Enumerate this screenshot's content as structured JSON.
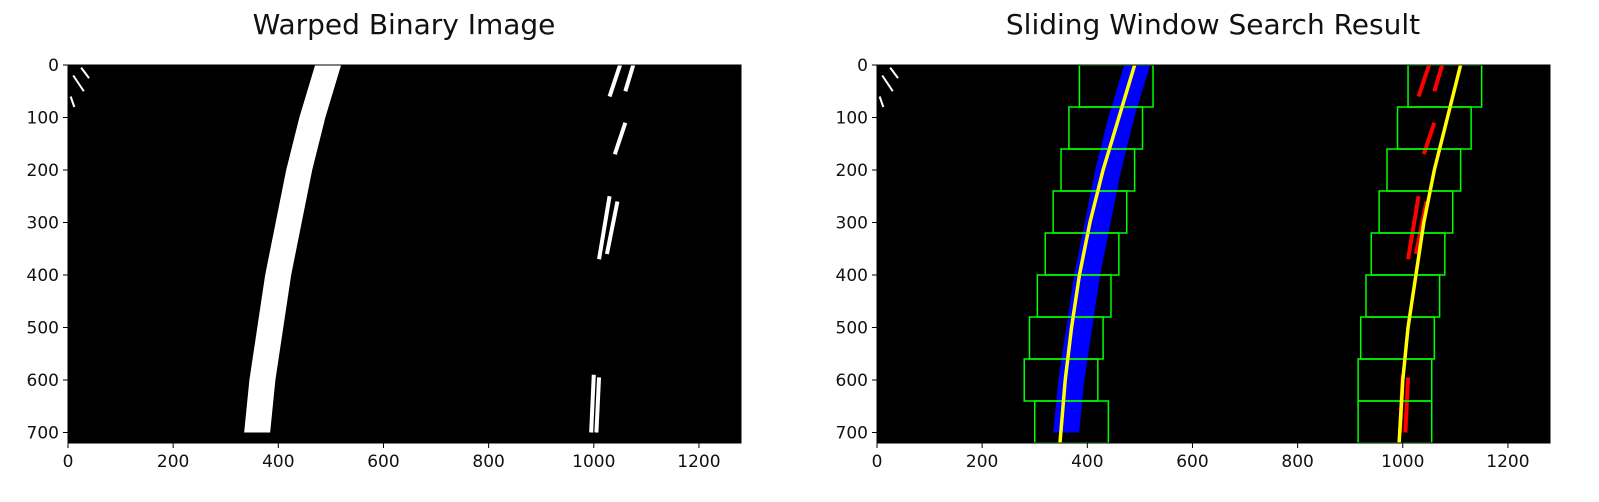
{
  "chart_data": [
    {
      "type": "image",
      "title": "Warped Binary Image",
      "xlim": [
        0,
        1280
      ],
      "ylim": [
        720,
        0
      ],
      "x_ticks": [
        0,
        200,
        400,
        600,
        800,
        1000,
        1200
      ],
      "y_ticks": [
        0,
        100,
        200,
        300,
        400,
        500,
        600,
        700
      ],
      "colors": {
        "background": "#000000",
        "pixels": "#ffffff"
      }
    },
    {
      "type": "image",
      "title": "Sliding Window Search Result",
      "xlim": [
        0,
        1280
      ],
      "ylim": [
        720,
        0
      ],
      "x_ticks": [
        0,
        200,
        400,
        600,
        800,
        1000,
        1200
      ],
      "y_ticks": [
        0,
        100,
        200,
        300,
        400,
        500,
        600,
        700
      ],
      "colors": {
        "background": "#000000",
        "left_lane_pixels": "#0000ff",
        "right_lane_pixels": "#ff0000",
        "windows": "#00ff00",
        "fit_lines": "#ffff00"
      },
      "windows": {
        "left": [
          {
            "x1": 385,
            "x2": 525
          },
          {
            "x1": 365,
            "x2": 505
          },
          {
            "x1": 350,
            "x2": 490
          },
          {
            "x1": 335,
            "x2": 475
          },
          {
            "x1": 320,
            "x2": 460
          },
          {
            "x1": 305,
            "x2": 445
          },
          {
            "x1": 290,
            "x2": 430
          },
          {
            "x1": 280,
            "x2": 420
          },
          {
            "x1": 300,
            "x2": 440
          }
        ],
        "right": [
          {
            "x1": 1010,
            "x2": 1150
          },
          {
            "x1": 990,
            "x2": 1130
          },
          {
            "x1": 970,
            "x2": 1110
          },
          {
            "x1": 955,
            "x2": 1095
          },
          {
            "x1": 940,
            "x2": 1080
          },
          {
            "x1": 930,
            "x2": 1070
          },
          {
            "x1": 920,
            "x2": 1060
          },
          {
            "x1": 915,
            "x2": 1055
          },
          {
            "x1": 915,
            "x2": 1055
          }
        ]
      },
      "fit_lines": {
        "left": [
          [
            490,
            0
          ],
          [
            460,
            100
          ],
          [
            430,
            200
          ],
          [
            405,
            300
          ],
          [
            385,
            400
          ],
          [
            370,
            500
          ],
          [
            358,
            600
          ],
          [
            348,
            720
          ]
        ],
        "right": [
          [
            1110,
            0
          ],
          [
            1085,
            100
          ],
          [
            1060,
            200
          ],
          [
            1040,
            300
          ],
          [
            1025,
            400
          ],
          [
            1010,
            500
          ],
          [
            1000,
            600
          ],
          [
            993,
            720
          ]
        ]
      }
    }
  ]
}
